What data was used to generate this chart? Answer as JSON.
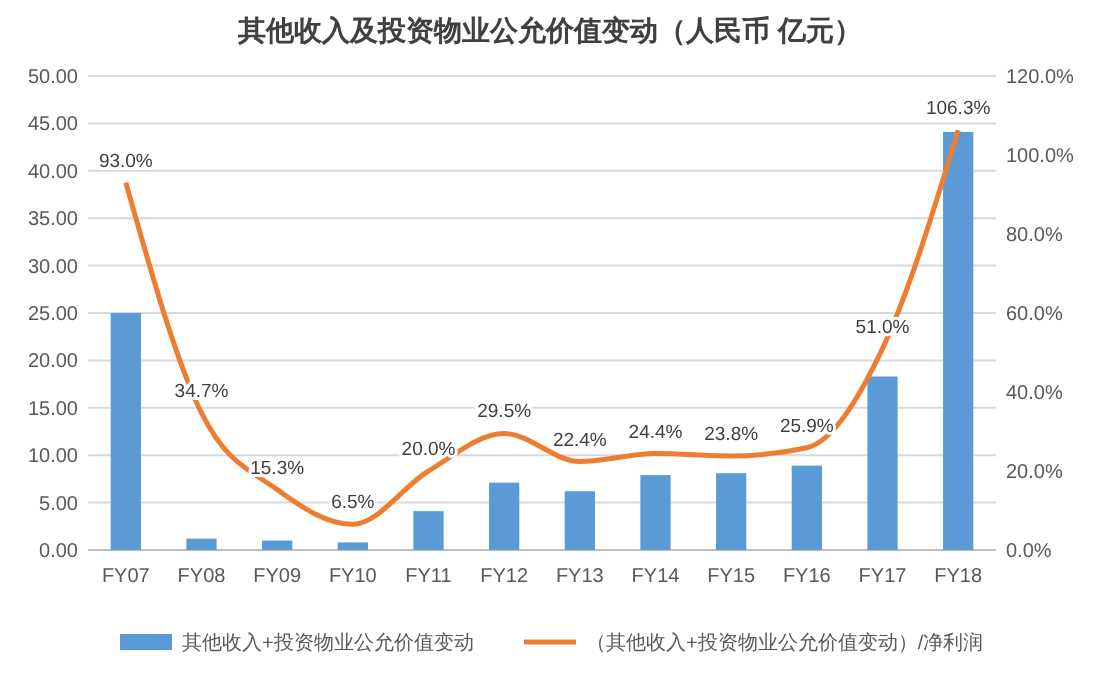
{
  "chart_data": {
    "type": "bar",
    "title": "其他收入及投资物业公允价值变动（人民币 亿元）",
    "categories": [
      "FY07",
      "FY08",
      "FY09",
      "FY10",
      "FY11",
      "FY12",
      "FY13",
      "FY14",
      "FY15",
      "FY16",
      "FY17",
      "FY18"
    ],
    "series": [
      {
        "name": "其他收入+投资物业公允价值变动",
        "color": "#5b9bd5",
        "values": [
          25.0,
          1.2,
          1.0,
          0.8,
          4.1,
          7.1,
          6.2,
          7.9,
          8.1,
          8.9,
          18.3,
          44.1
        ]
      },
      {
        "name": "（其他收入+投资物业公允价值变动）/净利润",
        "type": "line",
        "axis": "y2",
        "color": "#ed7d31",
        "values": [
          93.0,
          34.7,
          15.3,
          6.5,
          20.0,
          29.5,
          22.4,
          24.4,
          23.8,
          25.9,
          51.0,
          106.3
        ],
        "value_labels": [
          "93.0%",
          "34.7%",
          "15.3%",
          "6.5%",
          "20.0%",
          "29.5%",
          "22.4%",
          "24.4%",
          "23.8%",
          "25.9%",
          "51.0%",
          "106.3%"
        ]
      }
    ],
    "ylim": [
      0,
      50
    ],
    "yticks": [
      {
        "value": 0,
        "label": "0.00"
      },
      {
        "value": 5,
        "label": "5.00"
      },
      {
        "value": 10,
        "label": "10.00"
      },
      {
        "value": 15,
        "label": "15.00"
      },
      {
        "value": 20,
        "label": "20.00"
      },
      {
        "value": 25,
        "label": "25.00"
      },
      {
        "value": 30,
        "label": "30.00"
      },
      {
        "value": 35,
        "label": "35.00"
      },
      {
        "value": 40,
        "label": "40.00"
      },
      {
        "value": 45,
        "label": "45.00"
      },
      {
        "value": 50,
        "label": "50.00"
      }
    ],
    "y2lim": [
      0,
      120
    ],
    "y2ticks": [
      {
        "value": 0,
        "label": "0.0%"
      },
      {
        "value": 20,
        "label": "20.0%"
      },
      {
        "value": 40,
        "label": "40.0%"
      },
      {
        "value": 60,
        "label": "60.0%"
      },
      {
        "value": 80,
        "label": "80.0%"
      },
      {
        "value": 100,
        "label": "100.0%"
      },
      {
        "value": 120,
        "label": "120.0%"
      }
    ],
    "grid": "y",
    "legend": "bottom",
    "marker": "none",
    "line_style": "solid"
  }
}
